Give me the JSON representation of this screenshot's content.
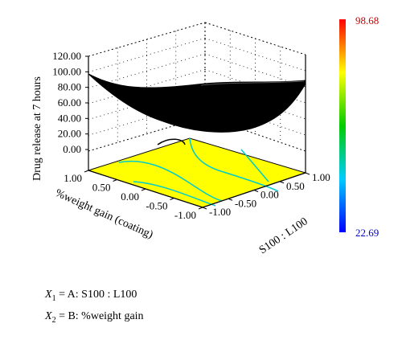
{
  "chart_data": {
    "type": "surface3d",
    "zlabel": "Drug release at 7 hours",
    "xlabel": "S100 : L100",
    "ylabel": "%weight gain (coating)",
    "z_ticks": [
      "120.00",
      "100.00",
      "80.00",
      "60.00",
      "40.00",
      "20.00",
      "0.00"
    ],
    "x_ticks": [
      "1.00",
      "0.50",
      "0.00",
      "-0.50",
      "-1.00"
    ],
    "y_ticks": [
      "1.00",
      "0.50",
      "0.00",
      "-0.50",
      "-1.00"
    ],
    "zlim": [
      0,
      120
    ],
    "xlim": [
      -1,
      1
    ],
    "ylim": [
      -1,
      1
    ],
    "surface_z": {
      "x": [
        -1,
        0,
        1
      ],
      "y": [
        -1,
        0,
        1
      ],
      "z_at_corners": {
        "x_-1_y_1": 98,
        "x_1_y_1": 88,
        "x_-1_y_-1": 60,
        "x_1_y_-1": 22.69
      }
    },
    "colorbar": {
      "max": "98.68",
      "min": "22.69",
      "colors": [
        "#ff0000",
        "#ffff00",
        "#00cc00",
        "#00ccff",
        "#0000ff"
      ]
    },
    "surface_color": "#000000",
    "contour_fill": "#ffff00",
    "contour_line": "#00cccc"
  },
  "equations": [
    {
      "var": "X",
      "sub": "1",
      "text": " = A: S100 : L100"
    },
    {
      "var": "X",
      "sub": "2",
      "text": " = B: %weight gain"
    }
  ]
}
